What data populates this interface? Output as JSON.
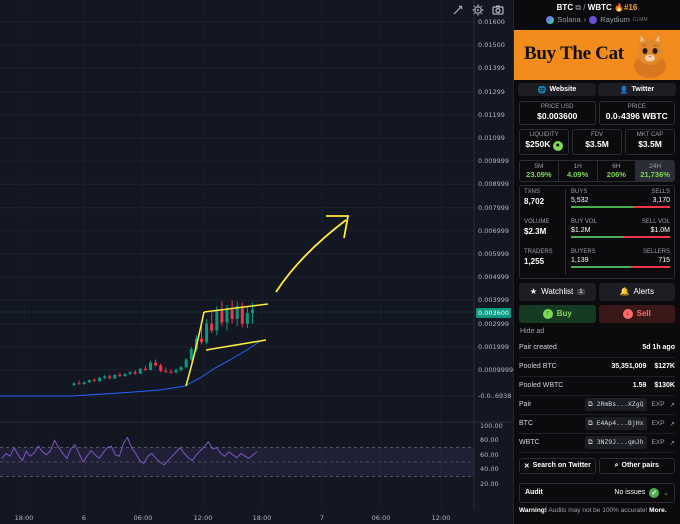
{
  "chart": {
    "price_axis": [
      "0.01600",
      "0.01500",
      "0.01399",
      "0.01299",
      "0.01199",
      "0.01099",
      "0.009999",
      "0.008999",
      "0.007999",
      "0.006999",
      "0.005999",
      "0.004999",
      "0.003999",
      "0.002999",
      "0.001999",
      "0.0009999",
      "-0.0..6938"
    ],
    "current_price_label": "0.003600",
    "rsi_axis": [
      "100.00",
      "80.00",
      "60.00",
      "40.00",
      "20.00"
    ],
    "time_axis": [
      "18:00",
      "6",
      "06:00",
      "12:00",
      "18:00",
      "7",
      "06:00",
      "12:00"
    ],
    "candles": [
      {
        "o": 0.00035,
        "h": 0.00048,
        "l": 0.0003,
        "c": 0.00042
      },
      {
        "o": 0.00042,
        "h": 0.00055,
        "l": 0.00038,
        "c": 0.0004
      },
      {
        "o": 0.0004,
        "h": 0.0005,
        "l": 0.00036,
        "c": 0.00047
      },
      {
        "o": 0.00047,
        "h": 0.0006,
        "l": 0.00044,
        "c": 0.00056
      },
      {
        "o": 0.00056,
        "h": 0.00064,
        "l": 0.0005,
        "c": 0.00052
      },
      {
        "o": 0.00052,
        "h": 0.0007,
        "l": 0.00049,
        "c": 0.00066
      },
      {
        "o": 0.00066,
        "h": 0.00078,
        "l": 0.0006,
        "c": 0.00072
      },
      {
        "o": 0.00072,
        "h": 0.0008,
        "l": 0.00062,
        "c": 0.00064
      },
      {
        "o": 0.00064,
        "h": 0.00082,
        "l": 0.00061,
        "c": 0.00079
      },
      {
        "o": 0.00079,
        "h": 0.00088,
        "l": 0.0007,
        "c": 0.00074
      },
      {
        "o": 0.00074,
        "h": 0.00086,
        "l": 0.0007,
        "c": 0.00083
      },
      {
        "o": 0.00083,
        "h": 0.00095,
        "l": 0.00078,
        "c": 0.0009
      },
      {
        "o": 0.0009,
        "h": 0.001,
        "l": 0.0008,
        "c": 0.00084
      },
      {
        "o": 0.00084,
        "h": 0.0011,
        "l": 0.00082,
        "c": 0.00105
      },
      {
        "o": 0.00105,
        "h": 0.00118,
        "l": 0.00096,
        "c": 0.001
      },
      {
        "o": 0.001,
        "h": 0.0014,
        "l": 0.00098,
        "c": 0.00132
      },
      {
        "o": 0.00132,
        "h": 0.00145,
        "l": 0.00115,
        "c": 0.0012
      },
      {
        "o": 0.0012,
        "h": 0.00128,
        "l": 0.0009,
        "c": 0.00096
      },
      {
        "o": 0.00096,
        "h": 0.0011,
        "l": 0.00088,
        "c": 0.00092
      },
      {
        "o": 0.00092,
        "h": 0.00102,
        "l": 0.00085,
        "c": 0.0009
      },
      {
        "o": 0.0009,
        "h": 0.00106,
        "l": 0.00086,
        "c": 0.001
      },
      {
        "o": 0.001,
        "h": 0.00118,
        "l": 0.00095,
        "c": 0.00112
      },
      {
        "o": 0.00112,
        "h": 0.0015,
        "l": 0.00108,
        "c": 0.00145
      },
      {
        "o": 0.00145,
        "h": 0.002,
        "l": 0.00138,
        "c": 0.0019
      },
      {
        "o": 0.0019,
        "h": 0.0025,
        "l": 0.0018,
        "c": 0.00235
      },
      {
        "o": 0.00235,
        "h": 0.0029,
        "l": 0.0021,
        "c": 0.0022
      },
      {
        "o": 0.0022,
        "h": 0.0032,
        "l": 0.0021,
        "c": 0.003
      },
      {
        "o": 0.003,
        "h": 0.0035,
        "l": 0.0026,
        "c": 0.0027
      },
      {
        "o": 0.0027,
        "h": 0.00375,
        "l": 0.0025,
        "c": 0.00355
      },
      {
        "o": 0.00355,
        "h": 0.00395,
        "l": 0.0029,
        "c": 0.00305
      },
      {
        "o": 0.00305,
        "h": 0.0038,
        "l": 0.0027,
        "c": 0.0036
      },
      {
        "o": 0.0036,
        "h": 0.004,
        "l": 0.003,
        "c": 0.0032
      },
      {
        "o": 0.0032,
        "h": 0.00395,
        "l": 0.0029,
        "c": 0.00375
      },
      {
        "o": 0.00375,
        "h": 0.00392,
        "l": 0.00285,
        "c": 0.003
      },
      {
        "o": 0.003,
        "h": 0.0037,
        "l": 0.0028,
        "c": 0.00345
      },
      {
        "o": 0.00345,
        "h": 0.0039,
        "l": 0.003,
        "c": 0.0036
      }
    ]
  },
  "header": {
    "base": "BTC",
    "quote": "WBTC",
    "rank": "#16",
    "chain": "Solana",
    "dex": "Raydium",
    "dex_tag": "CLMM"
  },
  "banner": {
    "title": "Buy The Cat"
  },
  "links": {
    "website": "Website",
    "twitter": "Twitter"
  },
  "price": {
    "usd_label": "PRICE USD",
    "usd_value": "$0.003600",
    "quote_label": "PRICE",
    "quote_value": "0.0₇4396 WBTC"
  },
  "metrics": [
    {
      "label": "LIQUIDITY",
      "value": "$250K"
    },
    {
      "label": "FDV",
      "value": "$3.5M"
    },
    {
      "label": "MKT CAP",
      "value": "$3.5M"
    }
  ],
  "changes": [
    {
      "label": "5M",
      "value": "23.09%"
    },
    {
      "label": "1H",
      "value": "4.09%"
    },
    {
      "label": "6H",
      "value": "206%"
    },
    {
      "label": "24H",
      "value": "21,736%"
    }
  ],
  "stats": {
    "txns_label": "TXNS",
    "txns": "8,702",
    "buys_label": "BUYS",
    "buys": "5,532",
    "sells_label": "SELLS",
    "sells": "3,170",
    "volume_label": "VOLUME",
    "volume": "$2.3M",
    "buyvol_label": "BUY VOL",
    "buyvol": "$1.2M",
    "sellvol_label": "SELL VOL",
    "sellvol": "$1.0M",
    "traders_label": "TRADERS",
    "traders": "1,255",
    "buyers_label": "BUYERS",
    "buyers": "1,139",
    "sellers_label": "SELLERS",
    "sellers": "715"
  },
  "actions": {
    "watchlist": "Watchlist",
    "watch_count": "1",
    "alerts": "Alerts",
    "buy": "Buy",
    "sell": "Sell",
    "hide_ad": "Hide ad"
  },
  "info": {
    "pair_created_label": "Pair created",
    "pair_created": "5d 1h ago",
    "pooled_base_label": "Pooled BTC",
    "pooled_base_amt": "35,351,009",
    "pooled_base_usd": "$127K",
    "pooled_quote_label": "Pooled WBTC",
    "pooled_quote_amt": "1.59",
    "pooled_quote_usd": "$130K",
    "pair_label": "Pair",
    "pair_addr": "2RmBs...XZgQ",
    "base_label": "BTC",
    "base_addr": "E4Ap4...BjHx",
    "quote_label": "WBTC",
    "quote_addr": "3NZ9J...qmJh",
    "exp": "EXP"
  },
  "buttons": {
    "search_twitter": "Search on Twitter",
    "other_pairs": "Other pairs"
  },
  "audit": {
    "label": "Audit",
    "status": "No issues"
  },
  "warning": {
    "bold": "Warning!",
    "text": " Audits may not be 100% accurate!",
    "more": " More."
  },
  "colors": {
    "up": "#089981",
    "down": "#f23645",
    "accent": "#f5a623",
    "banner": "#f28c1c"
  }
}
